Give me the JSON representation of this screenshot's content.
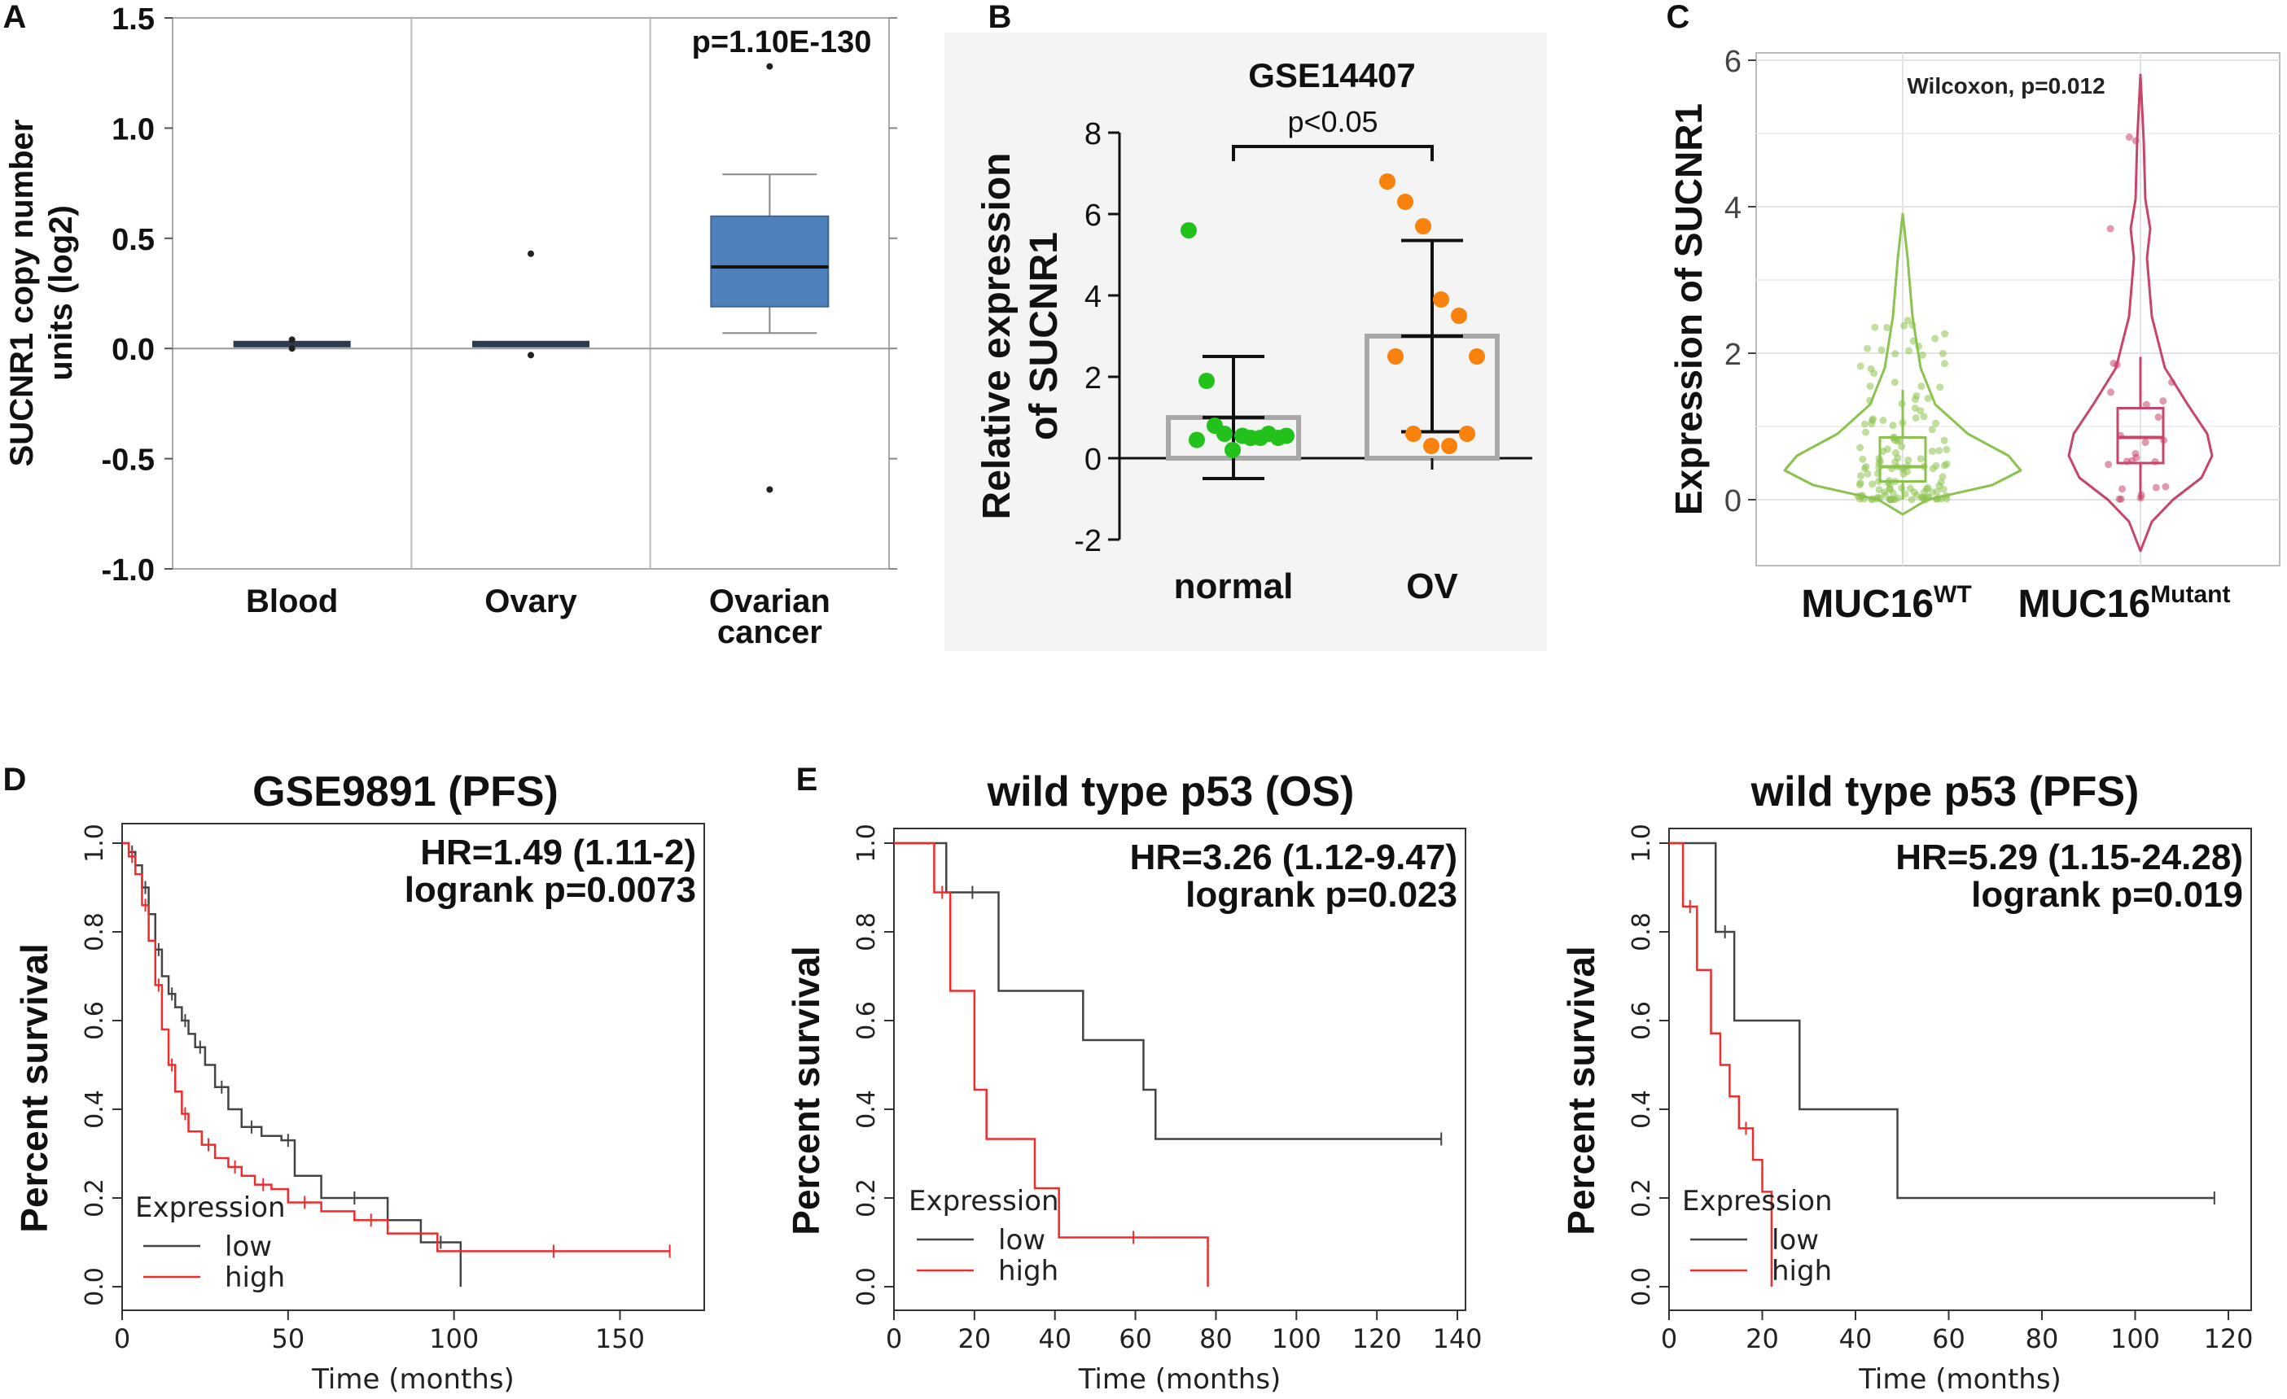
{
  "colors": {
    "box": "#4f81bd",
    "normal": "#22c21a",
    "ov": "#f8820c",
    "wt": "#8cc24f",
    "mut": "#c8456a",
    "high": "#ee2c2c",
    "low": "#444444",
    "grey_bar": "#a8a8a8"
  },
  "chart_data": [
    {
      "panel": "A",
      "type": "box",
      "title": "",
      "ylabel": [
        "SUCNR1 copy number",
        "units (log2)"
      ],
      "ylim": [
        -1.0,
        1.5
      ],
      "yticks": [
        1.5,
        1.0,
        0.5,
        0.0,
        -0.5,
        -1.0
      ],
      "ytick_labels": [
        "1.5",
        "1.0",
        "0.5",
        "0.0",
        "-0.5",
        "-1.0"
      ],
      "categories": [
        "Blood",
        "Ovary",
        "Ovarian|cancer"
      ],
      "boxes": [
        {
          "name": "Blood",
          "q1": 0.01,
          "median": 0.02,
          "q3": 0.03,
          "whisker_low": 0.0,
          "whisker_high": 0.03,
          "outliers": [
            0.04,
            0.0
          ]
        },
        {
          "name": "Ovary",
          "q1": 0.01,
          "median": 0.02,
          "q3": 0.03,
          "whisker_low": 0.0,
          "whisker_high": 0.03,
          "outliers": [
            0.43,
            -0.03
          ]
        },
        {
          "name": "Ovarian cancer",
          "q1": 0.19,
          "median": 0.37,
          "q3": 0.6,
          "whisker_low": 0.07,
          "whisker_high": 0.79,
          "outliers": [
            1.28,
            -0.64
          ]
        }
      ],
      "annotation": "p=1.10E-130"
    },
    {
      "panel": "B",
      "type": "bar",
      "title": "GSE14407",
      "ylabel": [
        "Relative expression",
        "of SUCNR1"
      ],
      "ylim": [
        -2,
        8
      ],
      "yticks": [
        8,
        6,
        4,
        2,
        0,
        -2
      ],
      "categories": [
        "normal",
        "OV"
      ],
      "values": [
        1.0,
        3.0
      ],
      "sd": [
        1.5,
        2.35
      ],
      "points": [
        [
          5.6,
          1.9,
          0.6,
          0.55,
          0.5,
          0.5,
          0.45,
          0.8,
          0.2,
          0.5,
          0.6,
          0.55
        ],
        [
          6.8,
          6.3,
          5.7,
          3.9,
          3.5,
          2.5,
          2.5,
          0.6,
          0.3,
          0.3,
          0.6
        ]
      ],
      "annotation": "p<0.05"
    },
    {
      "panel": "C",
      "type": "violin",
      "ylabel": "Expression of SUCNR1",
      "ylim": [
        -0.9,
        6.1
      ],
      "yticks": [
        6,
        4,
        2,
        0
      ],
      "categories": [
        {
          "base": "MUC16",
          "sup": "WT"
        },
        {
          "base": "MUC16",
          "sup": "Mutant"
        }
      ],
      "groups": [
        {
          "name": "MUC16 WT",
          "median": 0.45,
          "q1": 0.25,
          "q3": 0.85,
          "whisker_low": 0.0,
          "whisker_high": 1.5,
          "max": 3.9,
          "min": -0.2
        },
        {
          "name": "MUC16 Mutant",
          "median": 0.85,
          "q1": 0.5,
          "q3": 1.25,
          "whisker_low": 0.0,
          "whisker_high": 1.95,
          "max": 5.8,
          "min": -0.7
        }
      ],
      "annotation": "Wilcoxon, p=0.012"
    },
    {
      "panel": "D",
      "type": "line",
      "subtype": "kaplan-meier",
      "title": "GSE9891 (PFS)",
      "xlabel": "Time (months)",
      "ylabel": "Percent survival",
      "xlim": [
        0,
        170
      ],
      "xticks": [
        0,
        50,
        100,
        150
      ],
      "ylim": [
        0,
        1
      ],
      "yticks": [
        0.0,
        0.2,
        0.4,
        0.6,
        0.8,
        1.0
      ],
      "ytick_labels": [
        "0.0",
        "0.2",
        "0.4",
        "0.6",
        "0.8",
        "1.0"
      ],
      "legend_title": "Expression",
      "legend": [
        "low",
        "high"
      ],
      "hr_text": "HR=1.49 (1.11-2)",
      "p_text": "logrank p=0.0073",
      "series": [
        {
          "name": "low",
          "x": [
            0,
            2,
            4,
            6,
            8,
            10,
            12,
            14,
            16,
            18,
            20,
            22,
            25,
            28,
            32,
            36,
            42,
            48,
            52,
            60,
            80,
            90,
            102
          ],
          "y": [
            1.0,
            0.98,
            0.95,
            0.9,
            0.84,
            0.76,
            0.7,
            0.66,
            0.63,
            0.6,
            0.57,
            0.54,
            0.5,
            0.45,
            0.4,
            0.36,
            0.34,
            0.33,
            0.25,
            0.2,
            0.15,
            0.1,
            0.0
          ]
        },
        {
          "name": "high",
          "x": [
            0,
            2,
            4,
            6,
            8,
            10,
            12,
            14,
            16,
            18,
            20,
            24,
            28,
            32,
            36,
            40,
            45,
            50,
            60,
            70,
            80,
            95,
            165
          ],
          "y": [
            1.0,
            0.97,
            0.93,
            0.86,
            0.78,
            0.68,
            0.58,
            0.5,
            0.44,
            0.39,
            0.35,
            0.32,
            0.29,
            0.27,
            0.25,
            0.23,
            0.22,
            0.19,
            0.17,
            0.15,
            0.12,
            0.08,
            0.08
          ]
        }
      ]
    },
    {
      "panel": "E1",
      "type": "line",
      "subtype": "kaplan-meier",
      "title": "wild type p53 (OS)",
      "xlabel": "Time (months)",
      "ylabel": "Percent survival",
      "xlim": [
        0,
        140
      ],
      "xticks": [
        0,
        20,
        40,
        60,
        80,
        100,
        120,
        140
      ],
      "ylim": [
        0,
        1
      ],
      "yticks": [
        0.0,
        0.2,
        0.4,
        0.6,
        0.8,
        1.0
      ],
      "ytick_labels": [
        "0.0",
        "0.2",
        "0.4",
        "0.6",
        "0.8",
        "1.0"
      ],
      "legend_title": "Expression",
      "legend": [
        "low",
        "high"
      ],
      "hr_text": "HR=3.26 (1.12-9.47)",
      "p_text": "logrank p=0.023",
      "series": [
        {
          "name": "low",
          "x": [
            0,
            13,
            26,
            47,
            62,
            65,
            136
          ],
          "y": [
            1.0,
            0.889,
            0.667,
            0.556,
            0.444,
            0.333,
            0.333
          ]
        },
        {
          "name": "high",
          "x": [
            0,
            10,
            14,
            20,
            23,
            35,
            41,
            78
          ],
          "y": [
            1.0,
            0.889,
            0.667,
            0.444,
            0.333,
            0.222,
            0.111,
            0.0
          ]
        }
      ]
    },
    {
      "panel": "E2",
      "type": "line",
      "subtype": "kaplan-meier",
      "title": "wild type p53 (PFS)",
      "xlabel": "Time (months)",
      "ylabel": "Percent survival",
      "xlim": [
        0,
        120
      ],
      "xticks": [
        0,
        20,
        40,
        60,
        80,
        100,
        120
      ],
      "ylim": [
        0,
        1
      ],
      "yticks": [
        0.0,
        0.2,
        0.4,
        0.6,
        0.8,
        1.0
      ],
      "ytick_labels": [
        "0.0",
        "0.2",
        "0.4",
        "0.6",
        "0.8",
        "1.0"
      ],
      "legend_title": "Expression",
      "legend": [
        "low",
        "high"
      ],
      "hr_text": "HR=5.29 (1.15-24.28)",
      "p_text": "logrank p=0.019",
      "series": [
        {
          "name": "low",
          "x": [
            0,
            10,
            14,
            28,
            49,
            117
          ],
          "y": [
            1.0,
            0.8,
            0.6,
            0.4,
            0.2,
            0.2
          ]
        },
        {
          "name": "high",
          "x": [
            0,
            3,
            6,
            9,
            11,
            13,
            15,
            18,
            20,
            22
          ],
          "y": [
            1.0,
            0.857,
            0.714,
            0.571,
            0.5,
            0.429,
            0.357,
            0.286,
            0.214,
            0.0
          ]
        }
      ]
    }
  ]
}
